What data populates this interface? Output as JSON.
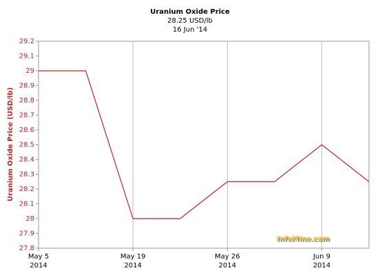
{
  "chart_data": {
    "type": "line",
    "title": "Uranium Oxide Price",
    "subtitle": "28.25 USD/lb",
    "date": "16 Jun '14",
    "y_label": "Uranium Oxide Price (USD/lb)",
    "watermark": "InfoMine.com",
    "categories": [
      "May 5",
      null,
      "May 19",
      null,
      "May 26",
      null,
      "Jun 9",
      null
    ],
    "category_years": [
      "2014",
      null,
      "2014",
      null,
      "2014",
      null,
      "2014",
      null
    ],
    "series": [
      {
        "name": "Uranium Oxide Price",
        "color": "#cc2222",
        "values": [
          29,
          29,
          28,
          28,
          28.25,
          28.25,
          28.5,
          28.25
        ]
      }
    ],
    "ylim": [
      27.8,
      29.2
    ],
    "yticks": [
      27.8,
      27.9,
      28,
      28.1,
      28.2,
      28.3,
      28.4,
      28.5,
      28.6,
      28.7,
      28.8,
      28.9,
      29,
      29.1,
      29.2
    ],
    "grid": true
  }
}
